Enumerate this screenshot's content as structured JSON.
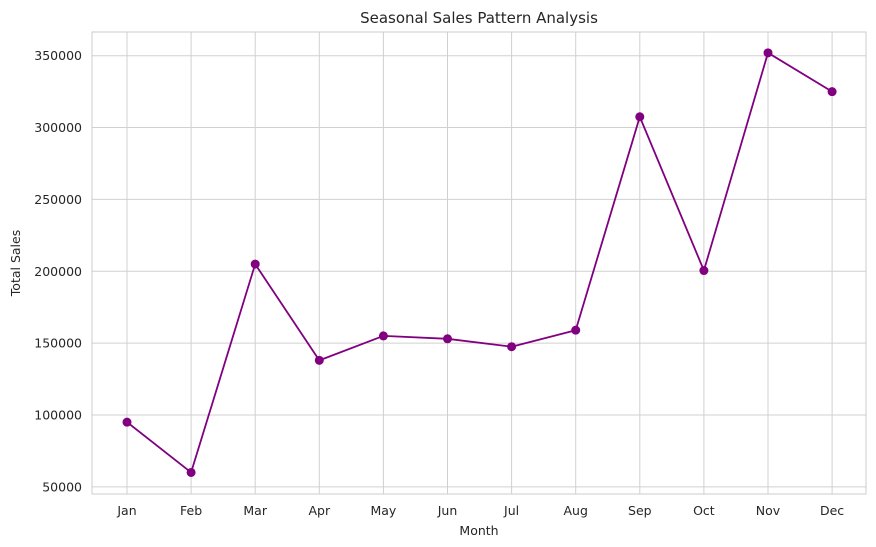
{
  "chart_data": {
    "type": "line",
    "title": "Seasonal Sales Pattern Analysis",
    "xlabel": "Month",
    "ylabel": "Total Sales",
    "categories": [
      "Jan",
      "Feb",
      "Mar",
      "Apr",
      "May",
      "Jun",
      "Jul",
      "Aug",
      "Sep",
      "Oct",
      "Nov",
      "Dec"
    ],
    "series": [
      {
        "values": [
          95000,
          60000,
          205000,
          138000,
          155000,
          153000,
          147500,
          159000,
          307500,
          200500,
          352000,
          325000
        ],
        "color": "#800080"
      }
    ],
    "yticks": [
      50000,
      100000,
      150000,
      200000,
      250000,
      300000,
      350000
    ],
    "ylim": [
      45000,
      366500
    ],
    "grid": true,
    "marker": "circle"
  }
}
